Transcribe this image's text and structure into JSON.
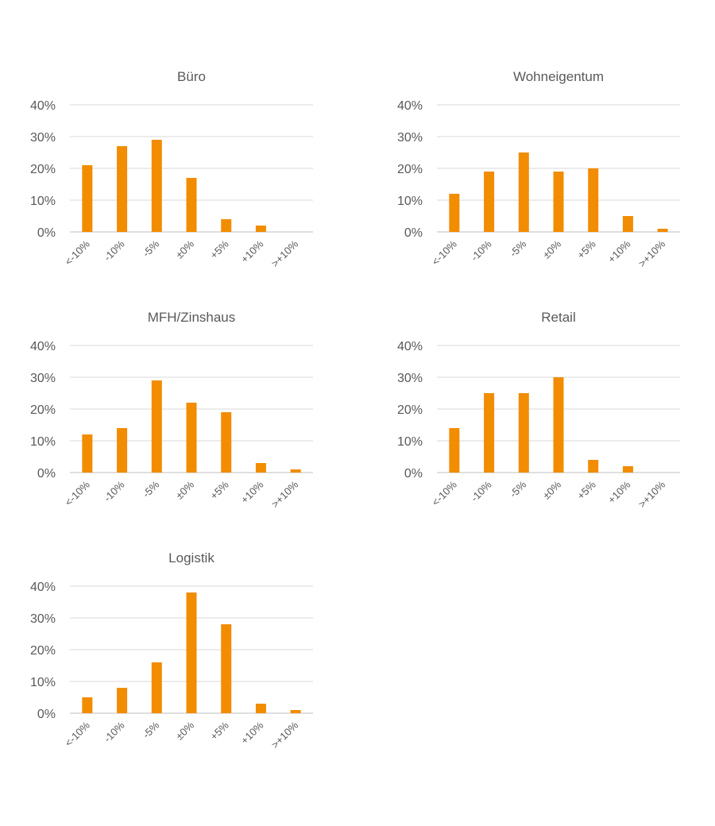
{
  "chart_data": [
    {
      "type": "bar",
      "title": "Büro",
      "categories": [
        "<-10%",
        "-10%",
        "-5%",
        "±0%",
        "+5%",
        "+10%",
        ">+10%"
      ],
      "values": [
        21,
        27,
        29,
        17,
        4,
        2,
        0
      ],
      "ylim": [
        0,
        40
      ],
      "yticks": [
        "0%",
        "10%",
        "20%",
        "30%",
        "40%"
      ],
      "xlabel": "",
      "ylabel": "",
      "grid": true,
      "legend": "none",
      "color": "#F28C00"
    },
    {
      "type": "bar",
      "title": "Wohneigentum",
      "categories": [
        "<-10%",
        "-10%",
        "-5%",
        "±0%",
        "+5%",
        "+10%",
        ">+10%"
      ],
      "values": [
        12,
        19,
        25,
        19,
        20,
        5,
        1
      ],
      "ylim": [
        0,
        40
      ],
      "yticks": [
        "0%",
        "10%",
        "20%",
        "30%",
        "40%"
      ],
      "xlabel": "",
      "ylabel": "",
      "grid": true,
      "legend": "none",
      "color": "#F28C00"
    },
    {
      "type": "bar",
      "title": "MFH/Zinshaus",
      "categories": [
        "<-10%",
        "-10%",
        "-5%",
        "±0%",
        "+5%",
        "+10%",
        ">+10%"
      ],
      "values": [
        12,
        14,
        29,
        22,
        19,
        3,
        1
      ],
      "ylim": [
        0,
        40
      ],
      "yticks": [
        "0%",
        "10%",
        "20%",
        "30%",
        "40%"
      ],
      "xlabel": "",
      "ylabel": "",
      "grid": true,
      "legend": "none",
      "color": "#F28C00"
    },
    {
      "type": "bar",
      "title": "Retail",
      "categories": [
        "<-10%",
        "-10%",
        "-5%",
        "±0%",
        "+5%",
        "+10%",
        ">+10%"
      ],
      "values": [
        14,
        25,
        25,
        30,
        4,
        2,
        0
      ],
      "ylim": [
        0,
        40
      ],
      "yticks": [
        "0%",
        "10%",
        "20%",
        "30%",
        "40%"
      ],
      "xlabel": "",
      "ylabel": "",
      "grid": true,
      "legend": "none",
      "color": "#F28C00"
    },
    {
      "type": "bar",
      "title": "Logistik",
      "categories": [
        "<-10%",
        "-10%",
        "-5%",
        "±0%",
        "+5%",
        "+10%",
        ">+10%"
      ],
      "values": [
        5,
        8,
        16,
        38,
        28,
        3,
        1
      ],
      "ylim": [
        0,
        40
      ],
      "yticks": [
        "0%",
        "10%",
        "20%",
        "30%",
        "40%"
      ],
      "xlabel": "",
      "ylabel": "",
      "grid": true,
      "legend": "none",
      "color": "#F28C00"
    }
  ]
}
